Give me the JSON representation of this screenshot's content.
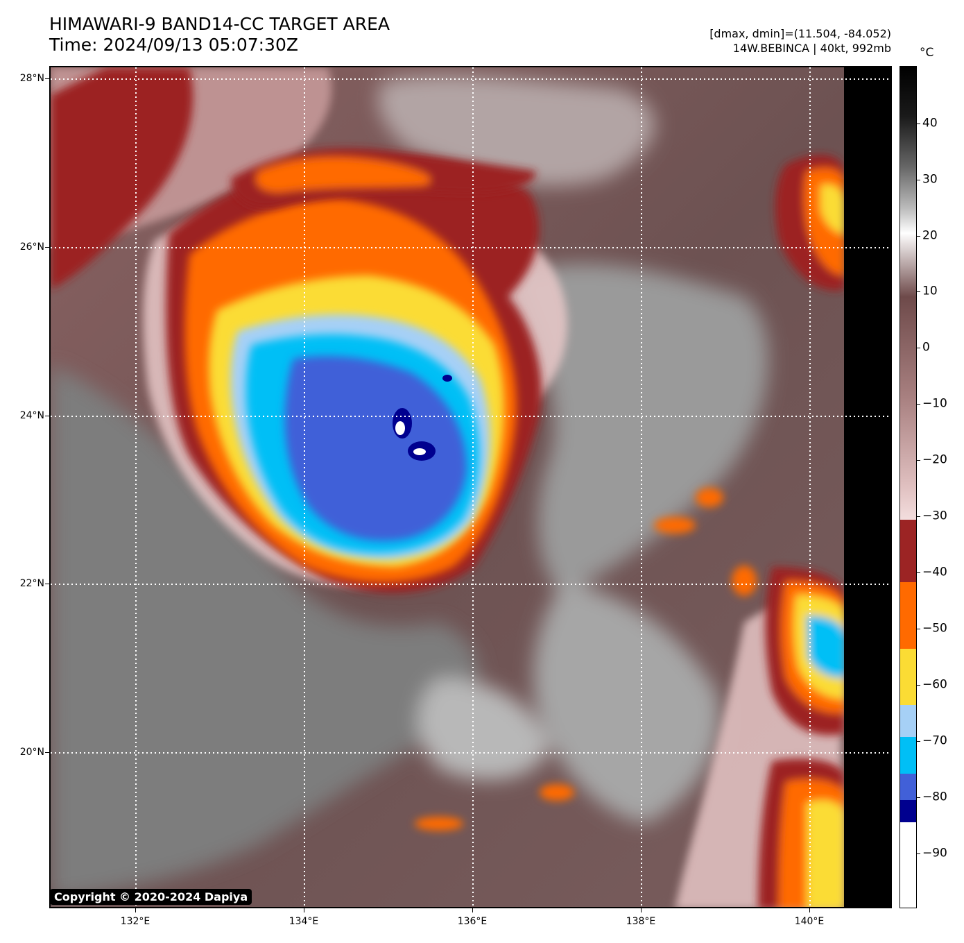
{
  "title": {
    "line1": "HIMAWARI-9 BAND14-CC TARGET AREA",
    "line2": "Time: 2024/09/13 05:07:30Z"
  },
  "info": {
    "line1": "[dmax, dmin]=(11.504, -84.052)",
    "line2": "14W.BEBINCA | 40kt, 992mb"
  },
  "colorbar": {
    "unit": "°C",
    "labels": [
      "40",
      "30",
      "20",
      "10",
      "0",
      "−10",
      "−20",
      "−30",
      "−40",
      "−50",
      "−60",
      "−70",
      "−80",
      "−90"
    ],
    "segments": [
      {
        "color": "#000000"
      },
      {
        "color": "#ffffff"
      },
      {
        "color": "#6e4a4a"
      },
      {
        "color": "#f3dede"
      },
      {
        "color": "#9c2424"
      },
      {
        "color": "#ff6a00"
      },
      {
        "color": "#fbdc34"
      },
      {
        "color": "#a6d0f6"
      },
      {
        "color": "#00bff6"
      },
      {
        "color": "#4160d8"
      },
      {
        "color": "#00008f"
      },
      {
        "color": "#ffffff"
      }
    ]
  },
  "axes": {
    "lat_labels": [
      "28°N",
      "26°N",
      "24°N",
      "22°N",
      "20°N"
    ],
    "lon_labels": [
      "132°E",
      "134°E",
      "136°E",
      "138°E",
      "140°E"
    ]
  },
  "storm": {
    "name": "14W.BEBINCA"
  },
  "copyright": "Copyright © 2020-2024 Dapiya"
}
